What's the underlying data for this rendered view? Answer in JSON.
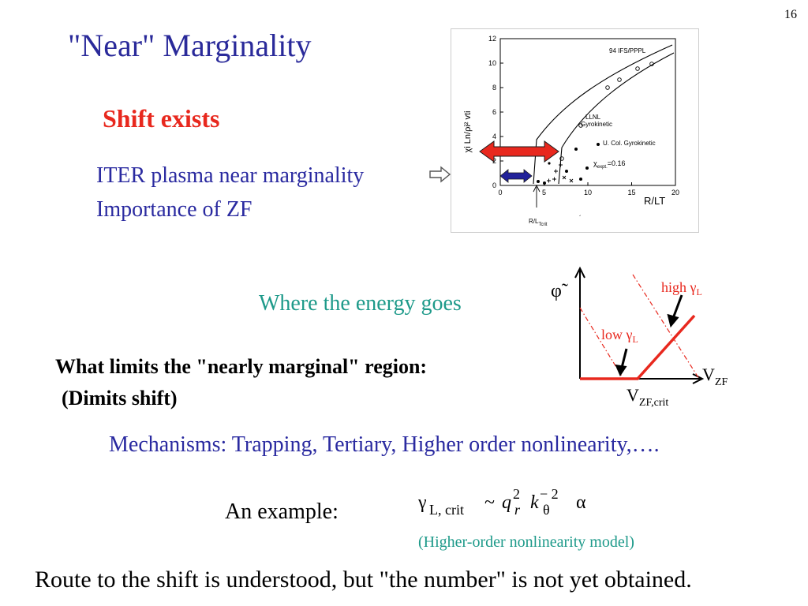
{
  "slide": {
    "page_number": "16",
    "title": "\"Near\" Marginality",
    "shift_exists": "Shift exists",
    "iter_line": "ITER plasma near marginality",
    "zf_line": "Importance of ZF",
    "energy_label": "Where the energy goes",
    "limits_question": "What limits the \"nearly marginal\" region:",
    "dimits_shift": "(Dimits shift)",
    "mechanisms": "Mechanisms: Trapping, Tertiary, Higher order nonlinearity,….",
    "example_label": "An example:",
    "formula": {
      "gamma": "γ",
      "gamma_sub": "L, crit",
      "tilde": "~",
      "q": "q",
      "q_sup": "2",
      "q_sub": "r",
      "k": "k",
      "k_sup": "− 2",
      "k_sub": "θ",
      "alpha": "α"
    },
    "model_note": "(Higher-order nonlinearity model)",
    "conclusion": "Route to the shift is understood, but \"the number\" is not yet obtained."
  },
  "figure": {
    "ylabel": "χi Ln/ρi² vti",
    "xlabel": "R/LT",
    "y_ticks": [
      "0",
      "2",
      "4",
      "6",
      "8",
      "10",
      "12"
    ],
    "x_ticks": [
      "0",
      "5",
      "10",
      "15",
      "20"
    ],
    "label_ifs": "94 IFS/PPPL",
    "label_llnl": "LLNL",
    "label_gyro": "Gyrokinetic",
    "label_ucol": "U. Col. Gyrokinetic",
    "label_chi": "χ",
    "label_chi_sub": "expt.",
    "label_chi_val": "=0.16",
    "label_rl": "R/L",
    "label_rl_sub": "Tcrit",
    "small_mark": "´"
  },
  "diagram": {
    "phi_label": "φ̃",
    "high_label": "high γ",
    "high_sub": "L",
    "low_label": "low γ",
    "low_sub": "L",
    "vzf_label": "V",
    "vzf_sub": "ZF",
    "vzfcrit_label": "V",
    "vzfcrit_sub": "ZF,crit"
  },
  "colors": {
    "title": "#2a2a9a",
    "red": "#e8281e",
    "teal": "#1e9a8a",
    "navy": "#22229a"
  }
}
